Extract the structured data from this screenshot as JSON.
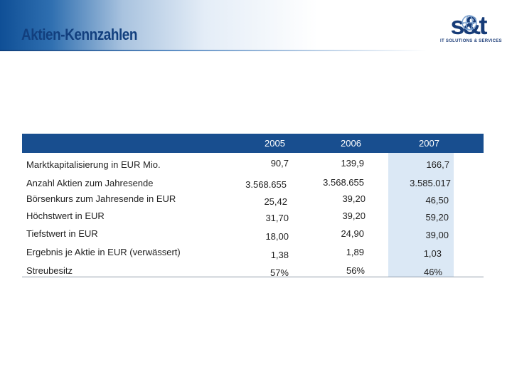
{
  "header": {
    "title": "Aktien-Kennzahlen",
    "logo_text": "s&t",
    "logo_tagline": "IT SOLUTIONS & SERVICES"
  },
  "colors": {
    "header_blue": "#123f7e",
    "table_header": "#184e8f",
    "highlight_column": "#dbe8f5"
  },
  "table": {
    "years": [
      "2005",
      "2006",
      "2007"
    ],
    "rows": [
      {
        "label": "Marktkapitalisierung in EUR Mio.",
        "values": [
          "90,7",
          "139,9",
          "166,7"
        ]
      },
      {
        "label": "Anzahl Aktien zum Jahresende",
        "values": [
          "3.568.655",
          "3.568.655",
          "3.585.017"
        ]
      },
      {
        "label": "Börsenkurs zum Jahresende in EUR",
        "values": [
          "25,42",
          "39,20",
          "46,50"
        ]
      },
      {
        "label": "Höchstwert in EUR",
        "values": [
          "31,70",
          "39,20",
          "59,20"
        ]
      },
      {
        "label": "Tiefstwert in EUR",
        "values": [
          "18,00",
          "24,90",
          "39,00"
        ]
      },
      {
        "label": "Ergebnis je Aktie in EUR (verwässert)",
        "values": [
          "1,38",
          "1,89",
          "1,03"
        ]
      },
      {
        "label": "Streubesitz",
        "values": [
          "57%",
          "56%",
          "46%"
        ]
      }
    ]
  }
}
